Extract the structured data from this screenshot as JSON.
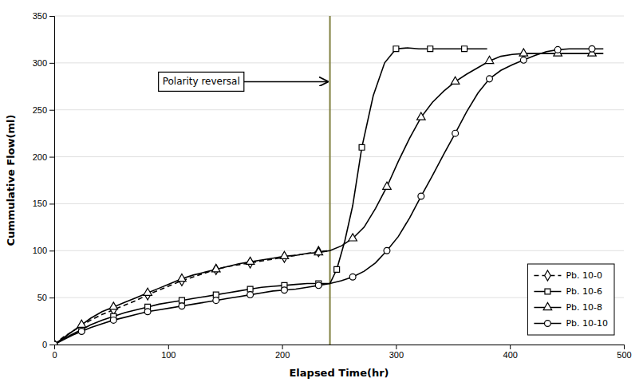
{
  "chart_data": {
    "type": "line",
    "xlabel": "Elapsed Time(hr)",
    "ylabel": "Cummulative Flow(ml)",
    "xlim": [
      0,
      500
    ],
    "ylim": [
      0,
      350
    ],
    "xticks": [
      0,
      100,
      200,
      300,
      400,
      500
    ],
    "yticks": [
      0,
      50,
      100,
      150,
      200,
      250,
      300,
      350
    ],
    "grid": true,
    "legend": "lower right",
    "annotations": [
      {
        "text": "Polarity reversal",
        "x": 242,
        "color": "#808040"
      }
    ],
    "series": [
      {
        "name": "Pb. 10-0",
        "color": "#000000",
        "marker": "diamond",
        "line_style": "dashed",
        "x": [
          0,
          8,
          16,
          24,
          32,
          42,
          52,
          62,
          72,
          82,
          92,
          102,
          112,
          122,
          132,
          142,
          152,
          162,
          172,
          182,
          192,
          202,
          212,
          222,
          232,
          242
        ],
        "values": [
          0,
          8,
          14,
          20,
          26,
          32,
          37,
          42,
          47,
          53,
          58,
          63,
          68,
          72,
          76,
          80,
          83,
          85,
          87,
          89,
          91,
          93,
          95,
          97,
          99,
          100
        ]
      },
      {
        "name": "Pb. 10-6",
        "color": "#000000",
        "marker": "square",
        "line_style": "solid",
        "x": [
          0,
          8,
          16,
          24,
          32,
          42,
          52,
          62,
          72,
          82,
          92,
          102,
          112,
          122,
          132,
          142,
          152,
          162,
          172,
          182,
          192,
          202,
          212,
          222,
          232,
          240,
          242,
          248,
          255,
          262,
          270,
          280,
          290,
          300,
          310,
          320,
          330,
          340,
          350,
          360,
          370,
          380
        ],
        "values": [
          0,
          6,
          11,
          16,
          21,
          26,
          30,
          34,
          37,
          40,
          43,
          45,
          47,
          49,
          51,
          53,
          55,
          57,
          59,
          61,
          62,
          63,
          64,
          65,
          65,
          65,
          65,
          80,
          110,
          148,
          210,
          265,
          300,
          315,
          316,
          315,
          315,
          315,
          315,
          315,
          315,
          315
        ]
      },
      {
        "name": "Pb. 10-8",
        "color": "#000000",
        "marker": "triangle",
        "line_style": "solid",
        "x": [
          0,
          8,
          16,
          24,
          32,
          42,
          52,
          62,
          72,
          82,
          92,
          102,
          112,
          122,
          132,
          142,
          152,
          162,
          172,
          182,
          192,
          202,
          212,
          222,
          232,
          242,
          252,
          262,
          272,
          282,
          292,
          302,
          312,
          322,
          332,
          342,
          352,
          362,
          372,
          382,
          392,
          402,
          412,
          422,
          432,
          442,
          452,
          462,
          472,
          482
        ],
        "values": [
          0,
          7,
          14,
          21,
          28,
          35,
          40,
          45,
          50,
          55,
          60,
          65,
          70,
          74,
          77,
          80,
          83,
          86,
          88,
          90,
          92,
          94,
          95,
          97,
          98,
          100,
          105,
          113,
          125,
          145,
          168,
          195,
          220,
          242,
          258,
          270,
          280,
          288,
          295,
          302,
          307,
          309,
          310,
          310,
          310,
          310,
          310,
          310,
          310,
          310
        ]
      },
      {
        "name": "Pb. 10-10",
        "color": "#000000",
        "marker": "circle",
        "line_style": "solid",
        "x": [
          0,
          8,
          16,
          24,
          32,
          42,
          52,
          62,
          72,
          82,
          92,
          102,
          112,
          122,
          132,
          142,
          152,
          162,
          172,
          182,
          192,
          202,
          212,
          222,
          232,
          242,
          252,
          262,
          272,
          282,
          292,
          302,
          312,
          322,
          332,
          342,
          352,
          362,
          372,
          382,
          392,
          402,
          412,
          422,
          432,
          442,
          452,
          462,
          472,
          482
        ],
        "values": [
          0,
          5,
          10,
          14,
          18,
          22,
          26,
          29,
          32,
          35,
          37,
          39,
          41,
          43,
          45,
          47,
          49,
          51,
          53,
          55,
          57,
          58,
          59,
          61,
          63,
          65,
          68,
          72,
          78,
          87,
          100,
          115,
          135,
          158,
          180,
          203,
          225,
          248,
          268,
          283,
          292,
          298,
          303,
          308,
          312,
          314,
          315,
          315,
          315,
          315
        ]
      }
    ]
  }
}
